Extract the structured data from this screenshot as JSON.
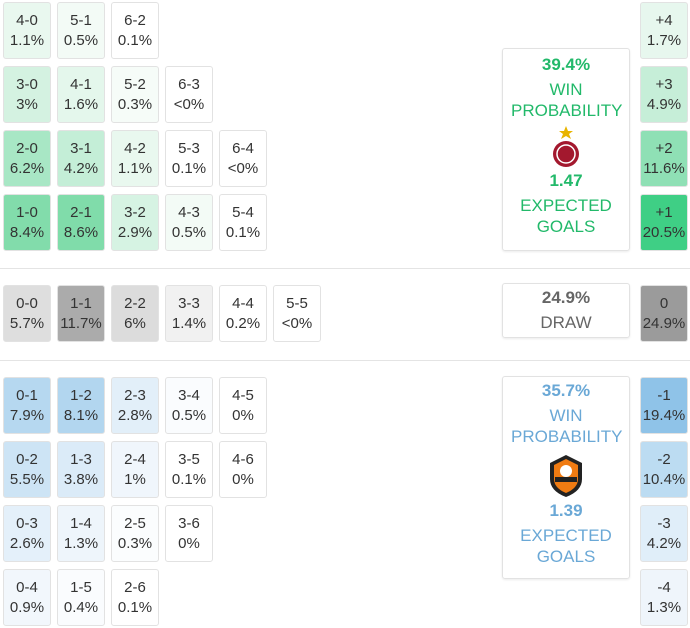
{
  "home": {
    "rows": [
      [
        {
          "score": "4-0",
          "prob": "1.1%",
          "color": "#e9f8ef"
        },
        {
          "score": "5-1",
          "prob": "0.5%",
          "color": "#f3fbf6"
        },
        {
          "score": "6-2",
          "prob": "0.1%",
          "color": "#ffffff"
        }
      ],
      [
        {
          "score": "3-0",
          "prob": "3%",
          "color": "#d4f2e1"
        },
        {
          "score": "4-1",
          "prob": "1.6%",
          "color": "#e4f7ec"
        },
        {
          "score": "5-2",
          "prob": "0.3%",
          "color": "#f6fcf8"
        },
        {
          "score": "6-3",
          "prob": "<0%",
          "color": "#ffffff"
        }
      ],
      [
        {
          "score": "2-0",
          "prob": "6.2%",
          "color": "#a8e7c5"
        },
        {
          "score": "3-1",
          "prob": "4.2%",
          "color": "#c4eed7"
        },
        {
          "score": "4-2",
          "prob": "1.1%",
          "color": "#e9f8ef"
        },
        {
          "score": "5-3",
          "prob": "0.1%",
          "color": "#ffffff"
        },
        {
          "score": "6-4",
          "prob": "<0%",
          "color": "#ffffff"
        }
      ],
      [
        {
          "score": "1-0",
          "prob": "8.4%",
          "color": "#82dcab"
        },
        {
          "score": "2-1",
          "prob": "8.6%",
          "color": "#80dcaa"
        },
        {
          "score": "3-2",
          "prob": "2.9%",
          "color": "#d6f3e3"
        },
        {
          "score": "4-3",
          "prob": "0.5%",
          "color": "#f3fbf6"
        },
        {
          "score": "5-4",
          "prob": "0.1%",
          "color": "#ffffff"
        }
      ]
    ],
    "margins": [
      {
        "score": "+4",
        "prob": "1.7%",
        "color": "#e7f7ee"
      },
      {
        "score": "+3",
        "prob": "4.9%",
        "color": "#c6eed8"
      },
      {
        "score": "+2",
        "prob": "11.6%",
        "color": "#8fe0b5"
      },
      {
        "score": "+1",
        "prob": "20.5%",
        "color": "#3fcf85"
      }
    ],
    "card": {
      "win_pct": "39.4%",
      "win_label": "WIN PROBABILITY",
      "xg": "1.47",
      "xg_label": "EXPECTED GOALS",
      "color": "#22b96a"
    }
  },
  "draw": {
    "row": [
      {
        "score": "0-0",
        "prob": "5.7%",
        "color": "#dedede"
      },
      {
        "score": "1-1",
        "prob": "11.7%",
        "color": "#ababab"
      },
      {
        "score": "2-2",
        "prob": "6%",
        "color": "#dcdcdc"
      },
      {
        "score": "3-3",
        "prob": "1.4%",
        "color": "#f1f1f1"
      },
      {
        "score": "4-4",
        "prob": "0.2%",
        "color": "#ffffff"
      },
      {
        "score": "5-5",
        "prob": "<0%",
        "color": "#ffffff"
      }
    ],
    "margin": {
      "score": "0",
      "prob": "24.9%",
      "color": "#9b9b9b"
    },
    "card": {
      "pct": "24.9%",
      "label": "DRAW",
      "color": "#666666"
    }
  },
  "away": {
    "rows": [
      [
        {
          "score": "0-1",
          "prob": "7.9%",
          "color": "#b6d8f0"
        },
        {
          "score": "1-2",
          "prob": "8.1%",
          "color": "#b2d6ef"
        },
        {
          "score": "2-3",
          "prob": "2.8%",
          "color": "#e2eff9"
        },
        {
          "score": "3-4",
          "prob": "0.5%",
          "color": "#fafcfe"
        },
        {
          "score": "4-5",
          "prob": "0%",
          "color": "#ffffff"
        }
      ],
      [
        {
          "score": "0-2",
          "prob": "5.5%",
          "color": "#cde4f5"
        },
        {
          "score": "1-3",
          "prob": "3.8%",
          "color": "#dbebf8"
        },
        {
          "score": "2-4",
          "prob": "1%",
          "color": "#f0f6fc"
        },
        {
          "score": "3-5",
          "prob": "0.1%",
          "color": "#ffffff"
        },
        {
          "score": "4-6",
          "prob": "0%",
          "color": "#ffffff"
        }
      ],
      [
        {
          "score": "0-3",
          "prob": "2.6%",
          "color": "#e4f0fa"
        },
        {
          "score": "1-4",
          "prob": "1.3%",
          "color": "#eef5fb"
        },
        {
          "score": "2-5",
          "prob": "0.3%",
          "color": "#fbfdfe"
        },
        {
          "score": "3-6",
          "prob": "0%",
          "color": "#ffffff"
        }
      ],
      [
        {
          "score": "0-4",
          "prob": "0.9%",
          "color": "#f2f7fc"
        },
        {
          "score": "1-5",
          "prob": "0.4%",
          "color": "#fafcfe"
        },
        {
          "score": "2-6",
          "prob": "0.1%",
          "color": "#ffffff"
        }
      ]
    ],
    "margins": [
      {
        "score": "-1",
        "prob": "19.4%",
        "color": "#8fc3e8"
      },
      {
        "score": "-2",
        "prob": "10.4%",
        "color": "#bcdcf2"
      },
      {
        "score": "-3",
        "prob": "4.2%",
        "color": "#e0eef9"
      },
      {
        "score": "-4",
        "prob": "1.3%",
        "color": "#eff5fb"
      }
    ],
    "card": {
      "win_pct": "35.7%",
      "win_label": "WIN PROBABILITY",
      "xg": "1.39",
      "xg_label": "EXPECTED GOALS",
      "color": "#6aa8d6"
    }
  }
}
